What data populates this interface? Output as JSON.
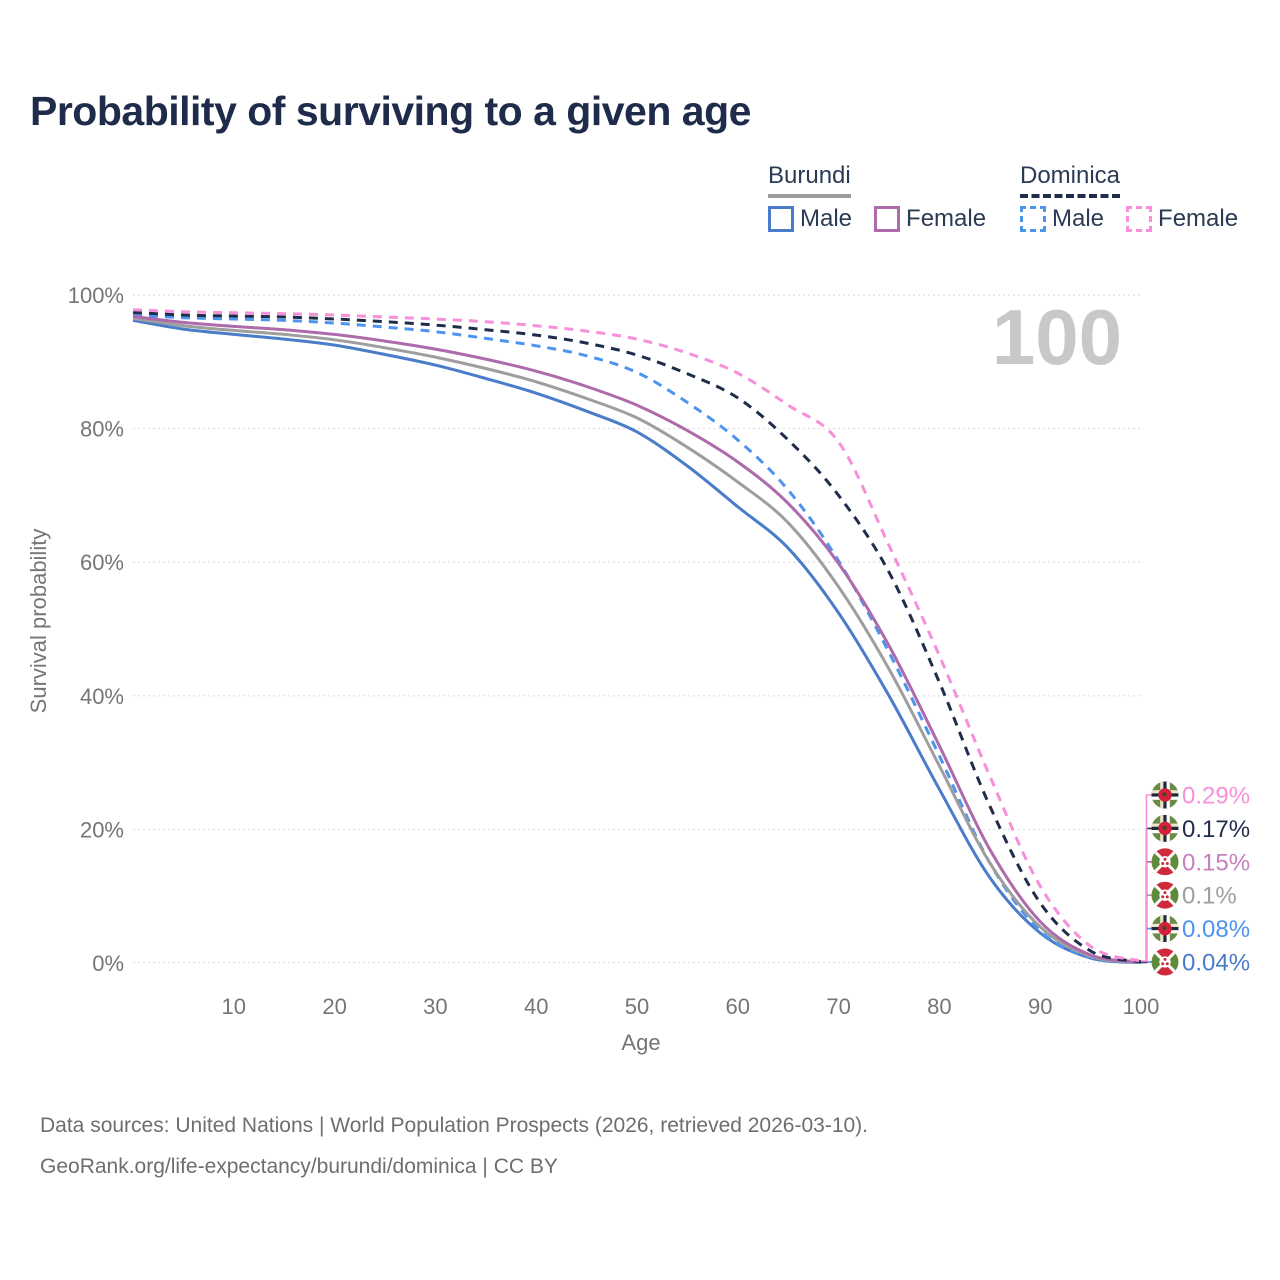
{
  "title": "Probability of surviving to a given age",
  "legend": {
    "groups": [
      {
        "label": "Burundi",
        "line_style": "solid",
        "line_color": "#9e9e9e",
        "items": [
          {
            "label": "Male",
            "color": "#4a7cc9"
          },
          {
            "label": "Female",
            "color": "#ad6bab"
          }
        ]
      },
      {
        "label": "Dominica",
        "line_style": "dashed",
        "line_color": "#1f2d4a",
        "items": [
          {
            "label": "Male",
            "color": "#4d94f0"
          },
          {
            "label": "Female",
            "color": "#f78fd9"
          }
        ]
      }
    ]
  },
  "footer": {
    "line1": "Data sources: United Nations | World Population Prospects (2026, retrieved 2026-03-10).",
    "line2": "GeoRank.org/life-expectancy/burundi/dominica | CC BY"
  },
  "chart_data": {
    "type": "line",
    "title": "Probability of surviving to a given age",
    "xlabel": "Age",
    "ylabel": "Survival probability",
    "xlim": [
      0,
      100
    ],
    "ylim": [
      0,
      100
    ],
    "grid": true,
    "watermark": "100",
    "x_ticks": [
      10,
      20,
      30,
      40,
      50,
      60,
      70,
      80,
      90,
      100
    ],
    "y_ticks": [
      {
        "value": 0,
        "label": "0%"
      },
      {
        "value": 20,
        "label": "20%"
      },
      {
        "value": 40,
        "label": "40%"
      },
      {
        "value": 60,
        "label": "60%"
      },
      {
        "value": 80,
        "label": "80%"
      },
      {
        "value": 100,
        "label": "100%"
      }
    ],
    "x": [
      0,
      5,
      10,
      15,
      20,
      25,
      30,
      35,
      40,
      45,
      50,
      55,
      60,
      65,
      70,
      75,
      80,
      85,
      90,
      95,
      100
    ],
    "series": [
      {
        "id": "dominica-female",
        "name": "Dominica Female",
        "country": "Dominica",
        "sex": "Female",
        "color": "#f78fd9",
        "dashed": true,
        "end_label": "0.29%",
        "flag": "dominica",
        "values": [
          97.8,
          97.5,
          97.35,
          97.2,
          97.0,
          96.7,
          96.4,
          96.0,
          95.4,
          94.6,
          93.4,
          91.3,
          88.3,
          83.5,
          78.0,
          62.5,
          46.0,
          28.0,
          11.5,
          2.5,
          0.29
        ]
      },
      {
        "id": "dominica-total",
        "name": "Dominica Both sexes",
        "country": "Dominica",
        "sex": "Both",
        "color": "#1f2d4a",
        "dashed": true,
        "end_label": "0.17%",
        "flag": "dominica",
        "values": [
          97.4,
          97.0,
          96.85,
          96.7,
          96.4,
          96.0,
          95.5,
          94.8,
          94.0,
          92.8,
          91.0,
          88.2,
          84.6,
          78.3,
          70.0,
          58.5,
          42.0,
          23.5,
          9.0,
          1.8,
          0.17
        ]
      },
      {
        "id": "burundi-female",
        "name": "Burundi Female",
        "country": "Burundi",
        "sex": "Female",
        "color": "#ad6bab",
        "dashed": false,
        "end_label": "0.15%",
        "flag": "burundi",
        "values": [
          96.8,
          95.9,
          95.3,
          94.8,
          94.1,
          93.1,
          91.9,
          90.4,
          88.6,
          86.3,
          83.5,
          79.7,
          75.0,
          68.8,
          59.8,
          47.5,
          32.5,
          17.0,
          6.2,
          1.2,
          0.15
        ]
      },
      {
        "id": "burundi-total",
        "name": "Burundi Both sexes",
        "country": "Burundi",
        "sex": "Both",
        "color": "#9e9e9e",
        "dashed": false,
        "end_label": "0.1%",
        "flag": "burundi",
        "values": [
          96.5,
          95.4,
          94.7,
          94.1,
          93.3,
          92.1,
          90.7,
          89.0,
          87.0,
          84.5,
          81.6,
          77.2,
          72.0,
          65.9,
          56.3,
          44.0,
          29.5,
          15.0,
          5.4,
          1.0,
          0.1
        ]
      },
      {
        "id": "dominica-male",
        "name": "Dominica Male",
        "country": "Dominica",
        "sex": "Male",
        "color": "#4d94f0",
        "dashed": true,
        "end_label": "0.08%",
        "flag": "dominica",
        "values": [
          97.0,
          96.6,
          96.4,
          96.2,
          95.8,
          95.2,
          94.5,
          93.5,
          92.4,
          90.9,
          88.4,
          83.9,
          78.3,
          70.8,
          60.2,
          46.5,
          31.0,
          15.0,
          4.8,
          0.85,
          0.08
        ]
      },
      {
        "id": "burundi-male",
        "name": "Burundi Male",
        "country": "Burundi",
        "sex": "Male",
        "color": "#4a7cc9",
        "dashed": false,
        "end_label": "0.04%",
        "flag": "burundi",
        "values": [
          96.2,
          94.9,
          94.1,
          93.4,
          92.5,
          91.1,
          89.5,
          87.5,
          85.3,
          82.6,
          79.5,
          74.4,
          68.3,
          62.1,
          52.4,
          40.0,
          26.0,
          12.8,
          4.5,
          0.75,
          0.04
        ]
      }
    ]
  }
}
